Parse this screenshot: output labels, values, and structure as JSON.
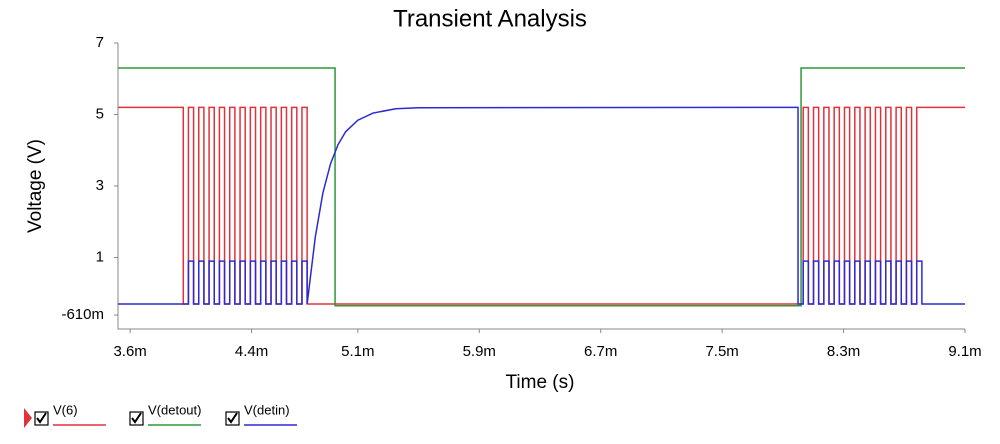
{
  "chart_data": {
    "type": "line",
    "title": "Transient Analysis",
    "x_label": "Time (s)",
    "y_label": "Voltage (V)",
    "xlim": [
      0.00352,
      0.0091
    ],
    "xticks": [
      {
        "value": 0.0036,
        "label": "3.6m"
      },
      {
        "value": 0.0044,
        "label": "4.4m"
      },
      {
        "value": 0.0051,
        "label": "5.1m"
      },
      {
        "value": 0.0059,
        "label": "5.9m"
      },
      {
        "value": 0.0067,
        "label": "6.7m"
      },
      {
        "value": 0.0075,
        "label": "7.5m"
      },
      {
        "value": 0.0083,
        "label": "8.3m"
      },
      {
        "value": 0.0091,
        "label": "9.1m"
      }
    ],
    "ylim": [
      -1,
      7
    ],
    "yticks": [
      7,
      5,
      3,
      1,
      {
        "value": -0.61,
        "label": "-610m"
      }
    ],
    "series": [
      {
        "name": "V(6)",
        "color": "#e0323a",
        "x": [
          0.00352,
          0.00395,
          0.00395,
          0.003984,
          0.003984,
          0.004018,
          0.004018,
          0.004052,
          0.004052,
          0.004086,
          0.004086,
          0.00412,
          0.00412,
          0.004154,
          0.004154,
          0.004188,
          0.004188,
          0.004222,
          0.004222,
          0.004256,
          0.004256,
          0.00429,
          0.00429,
          0.004324,
          0.004324,
          0.004358,
          0.004358,
          0.004392,
          0.004392,
          0.004426,
          0.004426,
          0.00446,
          0.00446,
          0.004494,
          0.004494,
          0.004528,
          0.004528,
          0.004562,
          0.004562,
          0.004596,
          0.004596,
          0.00463,
          0.00463,
          0.004664,
          0.004664,
          0.004698,
          0.004698,
          0.004732,
          0.004732,
          0.004766,
          0.004766,
          0.008,
          0.008034,
          0.008034,
          0.008068,
          0.008068,
          0.008102,
          0.008102,
          0.008136,
          0.008136,
          0.00817,
          0.00817,
          0.008204,
          0.008204,
          0.008238,
          0.008238,
          0.008272,
          0.008272,
          0.008306,
          0.008306,
          0.00834,
          0.00834,
          0.008374,
          0.008374,
          0.008408,
          0.008408,
          0.008442,
          0.008442,
          0.008476,
          0.008476,
          0.00851,
          0.00851,
          0.008544,
          0.008544,
          0.008578,
          0.008578,
          0.008612,
          0.008612,
          0.008646,
          0.008646,
          0.00868,
          0.00868,
          0.008714,
          0.008714,
          0.008748,
          0.008748,
          0.008782,
          0.008782,
          0.008816,
          0.0091
        ],
        "values": [
          5.2,
          5.2,
          -0.3,
          -0.3,
          5.2,
          5.2,
          -0.3,
          -0.3,
          5.2,
          5.2,
          -0.3,
          -0.3,
          5.2,
          5.2,
          -0.3,
          -0.3,
          5.2,
          5.2,
          -0.3,
          -0.3,
          5.2,
          5.2,
          -0.3,
          -0.3,
          5.2,
          5.2,
          -0.3,
          -0.3,
          5.2,
          5.2,
          -0.3,
          -0.3,
          5.2,
          5.2,
          -0.3,
          -0.3,
          5.2,
          5.2,
          -0.3,
          -0.3,
          5.2,
          5.2,
          -0.3,
          -0.3,
          5.2,
          5.2,
          -0.3,
          -0.3,
          5.2,
          5.2,
          -0.3,
          -0.3,
          -0.3,
          5.2,
          5.2,
          -0.3,
          -0.3,
          5.2,
          5.2,
          -0.3,
          -0.3,
          5.2,
          5.2,
          -0.3,
          -0.3,
          5.2,
          5.2,
          -0.3,
          -0.3,
          5.2,
          5.2,
          -0.3,
          -0.3,
          5.2,
          5.2,
          -0.3,
          -0.3,
          5.2,
          5.2,
          -0.3,
          -0.3,
          5.2,
          5.2,
          -0.3,
          -0.3,
          5.2,
          5.2,
          -0.3,
          -0.3,
          5.2,
          5.2,
          -0.3,
          -0.3,
          5.2,
          5.2,
          -0.3,
          -0.3,
          5.2,
          5.2,
          5.2
        ]
      },
      {
        "name": "V(detout)",
        "color": "#2a9a3a",
        "x": [
          0.00352,
          0.00495,
          0.00495,
          0.00802,
          0.00802,
          0.0091
        ],
        "values": [
          6.3,
          6.3,
          -0.35,
          -0.35,
          6.3,
          6.3
        ]
      },
      {
        "name": "V(detin)",
        "color": "#2b2bd0",
        "x": [
          0.00352,
          0.003984,
          0.003984,
          0.004018,
          0.004018,
          0.004052,
          0.004052,
          0.004086,
          0.004086,
          0.00412,
          0.00412,
          0.004154,
          0.004154,
          0.004188,
          0.004188,
          0.004222,
          0.004222,
          0.004256,
          0.004256,
          0.00429,
          0.00429,
          0.004324,
          0.004324,
          0.004358,
          0.004358,
          0.004392,
          0.004392,
          0.004426,
          0.004426,
          0.00446,
          0.00446,
          0.004494,
          0.004494,
          0.004528,
          0.004528,
          0.004562,
          0.004562,
          0.004596,
          0.004596,
          0.00463,
          0.00463,
          0.004664,
          0.004664,
          0.004698,
          0.004698,
          0.004732,
          0.004732,
          0.004766,
          0.004766,
          0.00482,
          0.00487,
          0.00492,
          0.00497,
          0.00502,
          0.0051,
          0.0052,
          0.00535,
          0.0055,
          0.008,
          0.008,
          0.008034,
          0.008034,
          0.008068,
          0.008068,
          0.008102,
          0.008102,
          0.008136,
          0.008136,
          0.00817,
          0.00817,
          0.008204,
          0.008204,
          0.008238,
          0.008238,
          0.008272,
          0.008272,
          0.008306,
          0.008306,
          0.00834,
          0.00834,
          0.008374,
          0.008374,
          0.008408,
          0.008408,
          0.008442,
          0.008442,
          0.008476,
          0.008476,
          0.00851,
          0.00851,
          0.008544,
          0.008544,
          0.008578,
          0.008578,
          0.008612,
          0.008612,
          0.008646,
          0.008646,
          0.00868,
          0.00868,
          0.008714,
          0.008714,
          0.008748,
          0.008748,
          0.008782,
          0.008782,
          0.008816,
          0.008816,
          0.0091
        ],
        "values": [
          -0.3,
          -0.3,
          0.9,
          0.9,
          -0.3,
          -0.3,
          0.9,
          0.9,
          -0.3,
          -0.3,
          0.9,
          0.9,
          -0.3,
          -0.3,
          0.9,
          0.9,
          -0.3,
          -0.3,
          0.9,
          0.9,
          -0.3,
          -0.3,
          0.9,
          0.9,
          -0.3,
          -0.3,
          0.9,
          0.9,
          -0.3,
          -0.3,
          0.9,
          0.9,
          -0.3,
          -0.3,
          0.9,
          0.9,
          -0.3,
          -0.3,
          0.9,
          0.9,
          -0.3,
          -0.3,
          0.9,
          0.9,
          -0.3,
          -0.3,
          0.9,
          0.9,
          -0.3,
          1.58,
          2.81,
          3.62,
          4.16,
          4.52,
          4.84,
          5.04,
          5.16,
          5.19,
          5.2,
          -0.3,
          -0.3,
          0.9,
          0.9,
          -0.3,
          -0.3,
          0.9,
          0.9,
          -0.3,
          -0.3,
          0.9,
          0.9,
          -0.3,
          -0.3,
          0.9,
          0.9,
          -0.3,
          -0.3,
          0.9,
          0.9,
          -0.3,
          -0.3,
          0.9,
          0.9,
          -0.3,
          -0.3,
          0.9,
          0.9,
          -0.3,
          -0.3,
          0.9,
          0.9,
          -0.3,
          -0.3,
          0.9,
          0.9,
          -0.3,
          -0.3,
          0.9,
          0.9,
          -0.3,
          -0.3,
          0.9,
          0.9,
          -0.3,
          -0.3,
          0.9,
          0.9,
          -0.3,
          -0.3
        ]
      }
    ]
  }
}
